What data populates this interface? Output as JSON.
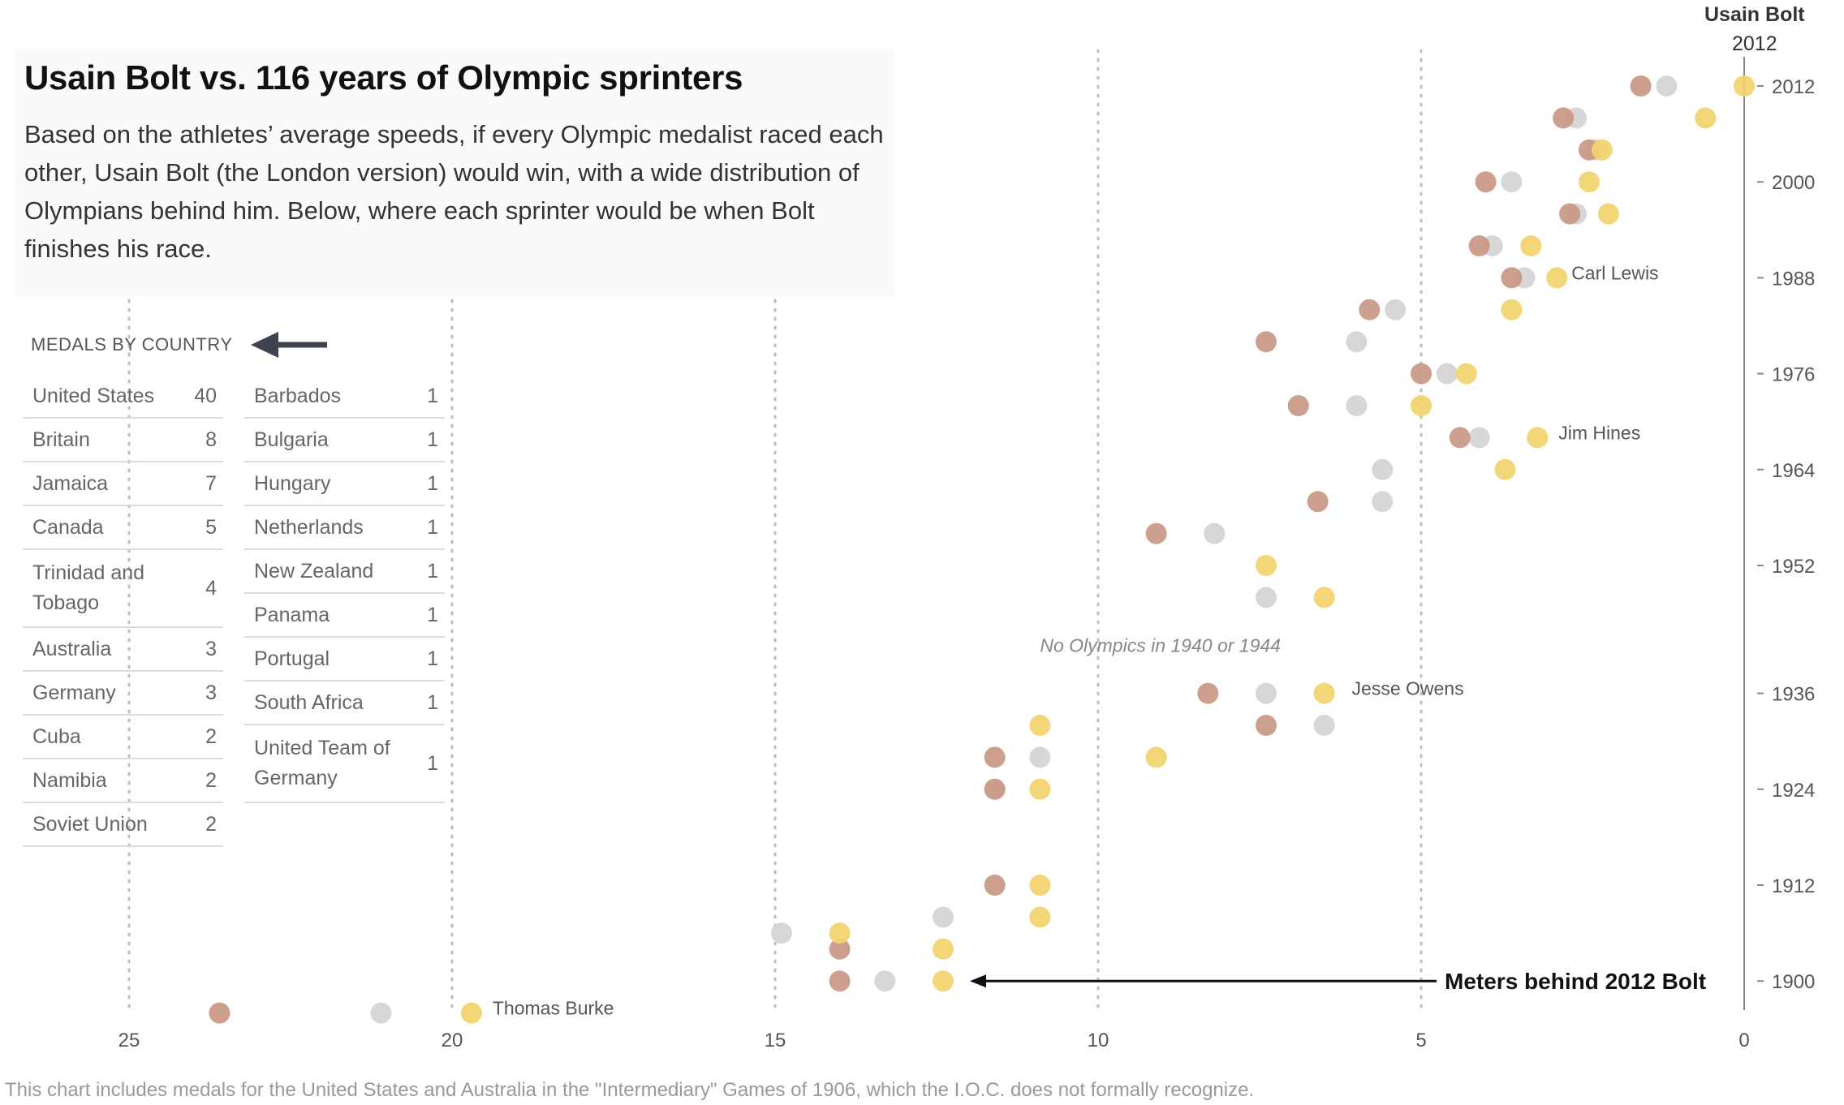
{
  "title": "Usain Bolt vs. 116 years of Olympic sprinters",
  "description": "Based on the athletes’ average speeds, if every Olympic medalist raced each other, Usain Bolt (the London version) would win, with a wide distribution of Olympians behind him. Below, where each sprinter would be when Bolt finishes his race.",
  "corner": {
    "name": "Usain Bolt",
    "year": "2012"
  },
  "medals": {
    "header": "MEDALS BY COUNTRY",
    "left": [
      {
        "country": "United States",
        "count": "40"
      },
      {
        "country": "Britain",
        "count": "8"
      },
      {
        "country": "Jamaica",
        "count": "7"
      },
      {
        "country": "Canada",
        "count": "5"
      },
      {
        "country": "Trinidad and Tobago",
        "count": "4"
      },
      {
        "country": "Australia",
        "count": "3"
      },
      {
        "country": "Germany",
        "count": "3"
      },
      {
        "country": "Cuba",
        "count": "2"
      },
      {
        "country": "Namibia",
        "count": "2"
      },
      {
        "country": "Soviet Union",
        "count": "2"
      }
    ],
    "right": [
      {
        "country": "Barbados",
        "count": "1"
      },
      {
        "country": "Bulgaria",
        "count": "1"
      },
      {
        "country": "Hungary",
        "count": "1"
      },
      {
        "country": "Netherlands",
        "count": "1"
      },
      {
        "country": "New Zealand",
        "count": "1"
      },
      {
        "country": "Panama",
        "count": "1"
      },
      {
        "country": "Portugal",
        "count": "1"
      },
      {
        "country": "South Africa",
        "count": "1"
      },
      {
        "country": "United Team of Germany",
        "count": "1"
      }
    ]
  },
  "footnote": "This chart includes medals for the United States and Australia in the \"Intermediary\" Games of 1906, which the I.O.C. does not formally recognize.",
  "colors": {
    "gold": "#f2d36b",
    "silver": "#d4d4d4",
    "bronze": "#c99784",
    "grid": "#bdbdbd",
    "axis": "#888888",
    "text": "#333333"
  },
  "chart_data": {
    "type": "scatter",
    "title": "Usain Bolt vs. 116 years of Olympic sprinters",
    "xlabel": "Meters behind 2012 Bolt",
    "xlim": [
      25,
      0
    ],
    "x_ticks": [
      25,
      20,
      15,
      10,
      5,
      0
    ],
    "y_ticks": [
      1900,
      1912,
      1924,
      1936,
      1952,
      1964,
      1976,
      1988,
      2000,
      2012
    ],
    "ylim": [
      1894,
      2012
    ],
    "annotations": [
      {
        "text": "Carl Lewis",
        "x": 3,
        "year": 1988
      },
      {
        "text": "Jim Hines",
        "x": 3.2,
        "year": 1968
      },
      {
        "text": "Jesse Owens",
        "x": 6.4,
        "year": 1936
      },
      {
        "text": "Thomas Burke",
        "x": 19.7,
        "year": 1896
      },
      {
        "text": "No Olympics in 1940 or 1944",
        "x": 10,
        "year": 1942
      }
    ],
    "series": [
      {
        "name": "Gold",
        "points": [
          [
            0,
            2012
          ],
          [
            0.6,
            2008
          ],
          [
            2.2,
            2004
          ],
          [
            2.4,
            2000
          ],
          [
            2.1,
            1996
          ],
          [
            3.3,
            1992
          ],
          [
            2.9,
            1988
          ],
          [
            3.6,
            1984
          ],
          [
            4.3,
            1976
          ],
          [
            5,
            1972
          ],
          [
            3.2,
            1968
          ],
          [
            3.7,
            1964
          ],
          [
            7.4,
            1952
          ],
          [
            6.5,
            1948
          ],
          [
            6.5,
            1936
          ],
          [
            10.9,
            1932
          ],
          [
            9.1,
            1928
          ],
          [
            10.9,
            1924
          ],
          [
            10.9,
            1912
          ],
          [
            10.9,
            1908
          ],
          [
            14,
            1906
          ],
          [
            12.4,
            1904
          ],
          [
            12.4,
            1900
          ],
          [
            19.7,
            1896
          ]
        ]
      },
      {
        "name": "Silver",
        "points": [
          [
            1.2,
            2012
          ],
          [
            2.6,
            2008
          ],
          [
            2.3,
            2004
          ],
          [
            3.6,
            2000
          ],
          [
            2.6,
            1996
          ],
          [
            3.9,
            1992
          ],
          [
            3.4,
            1988
          ],
          [
            5.4,
            1984
          ],
          [
            6,
            1980
          ],
          [
            4.6,
            1976
          ],
          [
            6,
            1972
          ],
          [
            4.1,
            1968
          ],
          [
            5.6,
            1964
          ],
          [
            5.6,
            1960
          ],
          [
            8.2,
            1956
          ],
          [
            7.4,
            1948
          ],
          [
            7.4,
            1936
          ],
          [
            6.5,
            1932
          ],
          [
            10.9,
            1928
          ],
          [
            11.6,
            1924
          ],
          [
            12.4,
            1908
          ],
          [
            14.9,
            1906
          ],
          [
            13.3,
            1900
          ],
          [
            21.1,
            1896
          ]
        ]
      },
      {
        "name": "Bronze",
        "points": [
          [
            1.6,
            2012
          ],
          [
            2.8,
            2008
          ],
          [
            2.4,
            2004
          ],
          [
            4,
            2000
          ],
          [
            2.7,
            1996
          ],
          [
            4.1,
            1992
          ],
          [
            3.6,
            1988
          ],
          [
            5.8,
            1984
          ],
          [
            7.4,
            1980
          ],
          [
            5,
            1976
          ],
          [
            6.9,
            1972
          ],
          [
            4.4,
            1968
          ],
          [
            6.6,
            1960
          ],
          [
            9.1,
            1956
          ],
          [
            8.3,
            1936
          ],
          [
            7.4,
            1932
          ],
          [
            11.6,
            1928
          ],
          [
            11.6,
            1924
          ],
          [
            11.6,
            1912
          ],
          [
            14,
            1904
          ],
          [
            14,
            1900
          ],
          [
            23.6,
            1896
          ]
        ]
      }
    ]
  }
}
